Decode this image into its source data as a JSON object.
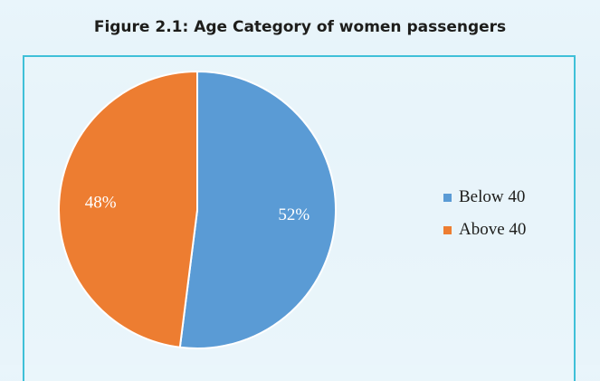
{
  "chart_data": {
    "type": "pie",
    "title": "Figure 2.1: Age Category of women passengers",
    "categories": [
      "Below 40",
      "Above 40"
    ],
    "values": [
      52,
      48
    ],
    "value_labels": [
      "52%",
      "48%"
    ],
    "colors": [
      "#5a9bd5",
      "#ed7d31"
    ],
    "legend_placement": "right",
    "start_angle_deg": 0,
    "direction": "clockwise"
  }
}
